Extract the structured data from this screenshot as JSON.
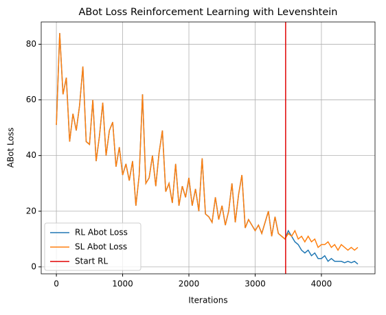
{
  "chart_data": {
    "type": "line",
    "title": "ABot Loss Reinforcement Learning with Levenshtein",
    "xlabel": "Iterations",
    "ylabel": "ABot Loss",
    "x": [
      0,
      50,
      100,
      150,
      200,
      250,
      300,
      350,
      400,
      450,
      500,
      550,
      600,
      650,
      700,
      750,
      800,
      850,
      900,
      950,
      1000,
      1050,
      1100,
      1150,
      1200,
      1250,
      1300,
      1350,
      1400,
      1450,
      1500,
      1550,
      1600,
      1650,
      1700,
      1750,
      1800,
      1850,
      1900,
      1950,
      2000,
      2050,
      2100,
      2150,
      2200,
      2250,
      2300,
      2350,
      2400,
      2450,
      2500,
      2550,
      2600,
      2650,
      2700,
      2750,
      2800,
      2850,
      2900,
      2950,
      3000,
      3050,
      3100,
      3150,
      3200,
      3250,
      3300,
      3350,
      3400,
      3450,
      3500,
      3550,
      3600,
      3650,
      3700,
      3750,
      3800,
      3850,
      3900,
      3950,
      4000,
      4050,
      4100,
      4150,
      4200,
      4250,
      4300,
      4350,
      4400,
      4450,
      4500,
      4550
    ],
    "series": [
      {
        "name": "RL Abot Loss",
        "color": "#1f77b4",
        "values": [
          51,
          84,
          62,
          68,
          45,
          55,
          49,
          58,
          72,
          45,
          44,
          60,
          38,
          47,
          59,
          40,
          49,
          52,
          36,
          43,
          33,
          37,
          31,
          38,
          22,
          33,
          62,
          30,
          32,
          40,
          29,
          41,
          49,
          27,
          30,
          23,
          37,
          22,
          29,
          25,
          32,
          22,
          28,
          20,
          39,
          19,
          18,
          16,
          25,
          17,
          22,
          15,
          20,
          30,
          16,
          26,
          33,
          14,
          17,
          15,
          13,
          15,
          12,
          16,
          20,
          11,
          18,
          12,
          11,
          10,
          13,
          11,
          9,
          8,
          6,
          5,
          6,
          4,
          5,
          3,
          3,
          4,
          2,
          3,
          2,
          2,
          2,
          1.5,
          2,
          1.5,
          2,
          1
        ]
      },
      {
        "name": "SL Abot Loss",
        "color": "#ff7f0e",
        "values": [
          51,
          84,
          62,
          68,
          45,
          55,
          49,
          58,
          72,
          45,
          44,
          60,
          38,
          47,
          59,
          40,
          49,
          52,
          36,
          43,
          33,
          37,
          31,
          38,
          22,
          33,
          62,
          30,
          32,
          40,
          29,
          41,
          49,
          27,
          30,
          23,
          37,
          22,
          29,
          25,
          32,
          22,
          28,
          20,
          39,
          19,
          18,
          16,
          25,
          17,
          22,
          15,
          20,
          30,
          16,
          26,
          33,
          14,
          17,
          15,
          13,
          15,
          12,
          16,
          20,
          11,
          18,
          12,
          11,
          10,
          12,
          11,
          13,
          10,
          11,
          9,
          11,
          9,
          10,
          7,
          8,
          8,
          9,
          7,
          8,
          6,
          8,
          7,
          6,
          7,
          6,
          7
        ]
      }
    ],
    "vlines": [
      {
        "name": "Start RL",
        "x": 3460,
        "color": "#e00000"
      }
    ],
    "xlim": [
      -229,
      4809
    ],
    "ylim": [
      -2.5,
      88
    ],
    "xticks": [
      0,
      1000,
      2000,
      3000,
      4000
    ],
    "yticks": [
      0,
      20,
      40,
      60,
      80
    ],
    "grid": true,
    "legend": "lower left"
  }
}
